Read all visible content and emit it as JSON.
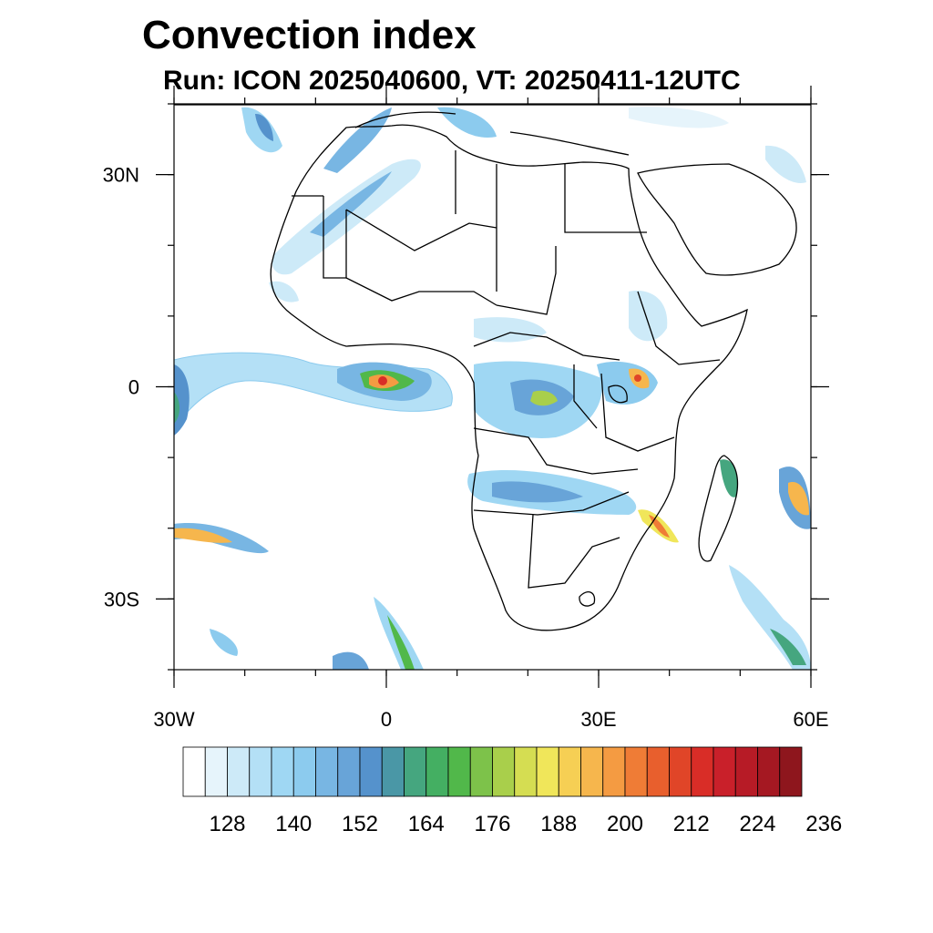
{
  "title": "Convection index",
  "subtitle": "Run: ICON 2025040600,  VT: 20250411-12UTC",
  "map": {
    "lon_range": [
      -30,
      60
    ],
    "lat_range": [
      -40,
      40
    ],
    "x_ticks": [
      {
        "lon": -30,
        "label": "30W"
      },
      {
        "lon": 0,
        "label": "0"
      },
      {
        "lon": 30,
        "label": "30E"
      },
      {
        "lon": 60,
        "label": "60E"
      }
    ],
    "y_ticks": [
      {
        "lat": 30,
        "label": "30N"
      },
      {
        "lat": 0,
        "label": "0"
      },
      {
        "lat": -30,
        "label": "30S"
      }
    ]
  },
  "colorbar": {
    "labels": [
      "128",
      "140",
      "152",
      "164",
      "176",
      "188",
      "200",
      "212",
      "224",
      "236"
    ],
    "colors": [
      "#ffffff",
      "#e6f4fb",
      "#cdeaf8",
      "#b4e0f6",
      "#9fd7f3",
      "#8ccbee",
      "#78b6e3",
      "#68a4d8",
      "#5592cc",
      "#4a97a6",
      "#45a67f",
      "#44af62",
      "#51b84a",
      "#7dc24a",
      "#a9cf4b",
      "#d5dd52",
      "#f0e65a",
      "#f6cf54",
      "#f6b64d",
      "#f49b42",
      "#ef7c36",
      "#e85f2d",
      "#e04528",
      "#d92d27",
      "#c9202a",
      "#b71b26",
      "#a51822",
      "#8e161d"
    ]
  }
}
